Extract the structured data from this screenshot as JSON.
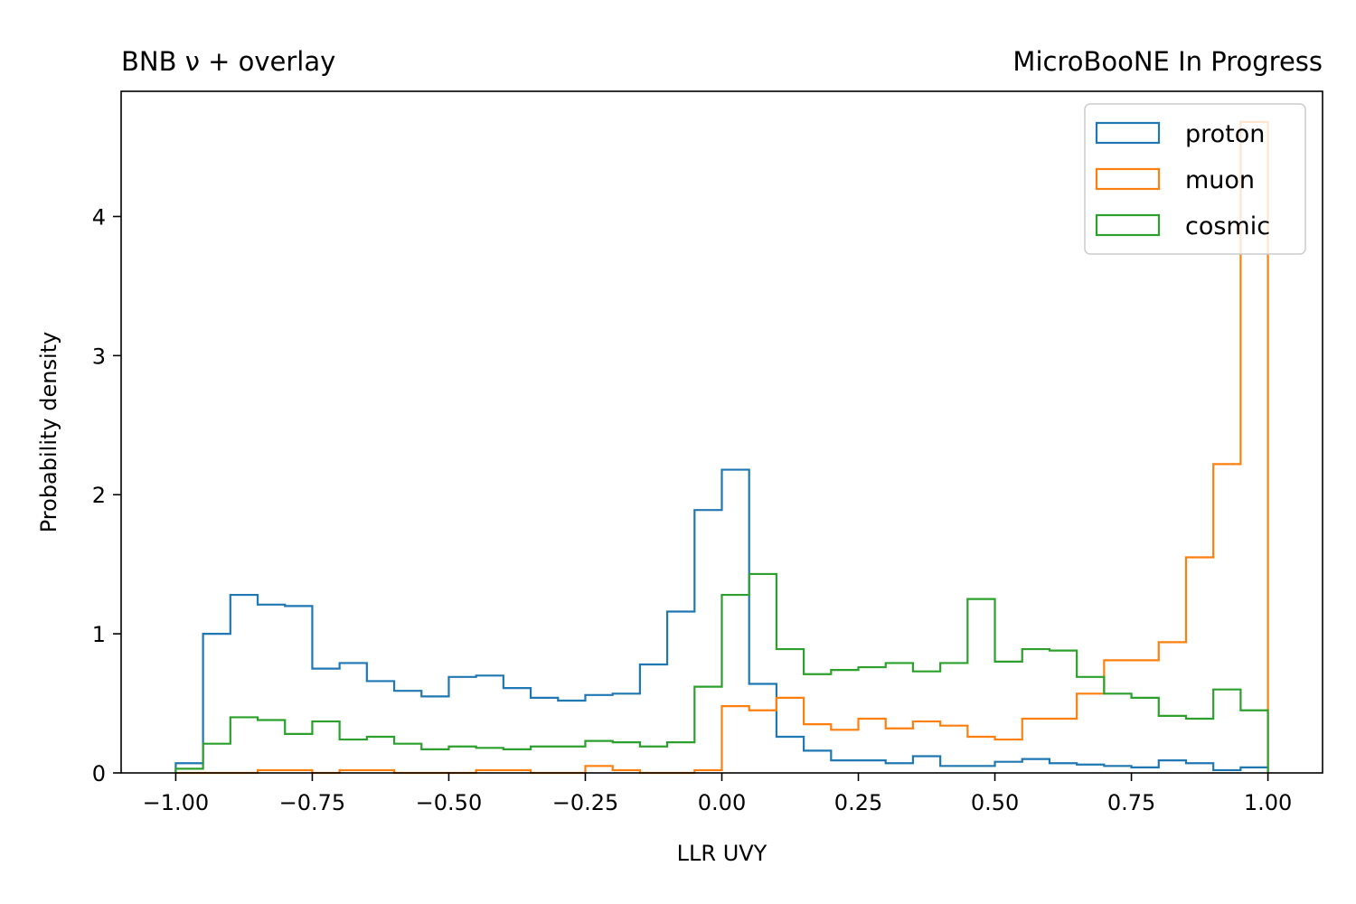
{
  "chart_data": {
    "type": "histogram",
    "title_left": "BNB ν + overlay",
    "title_right": "MicroBooNE In Progress",
    "xlabel": "LLR UVY",
    "ylabel": "Probability density",
    "xlim": [
      -1.1,
      1.1
    ],
    "ylim": [
      0,
      4.9
    ],
    "xticks": [
      -1.0,
      -0.75,
      -0.5,
      -0.25,
      0.0,
      0.25,
      0.5,
      0.75,
      1.0
    ],
    "xtick_labels": [
      "−1.00",
      "−0.75",
      "−0.50",
      "−0.25",
      "0.00",
      "0.25",
      "0.50",
      "0.75",
      "1.00"
    ],
    "yticks": [
      0,
      1,
      2,
      3,
      4
    ],
    "ytick_labels": [
      "0",
      "1",
      "2",
      "3",
      "4"
    ],
    "grid": false,
    "legend_position": "top-right",
    "bin_edges_start": -1.0,
    "bin_width": 0.05,
    "series": [
      {
        "name": "proton",
        "color": "#1f77b4",
        "values": [
          0.07,
          1.0,
          1.28,
          1.21,
          1.2,
          0.75,
          0.79,
          0.66,
          0.59,
          0.55,
          0.69,
          0.7,
          0.61,
          0.54,
          0.52,
          0.56,
          0.57,
          0.78,
          1.16,
          1.89,
          2.18,
          0.64,
          0.26,
          0.16,
          0.09,
          0.09,
          0.07,
          0.12,
          0.05,
          0.05,
          0.08,
          0.1,
          0.07,
          0.06,
          0.05,
          0.04,
          0.09,
          0.07,
          0.02,
          0.04
        ]
      },
      {
        "name": "muon",
        "color": "#ff7f0e",
        "values": [
          0,
          0,
          0,
          0.02,
          0.02,
          0,
          0.02,
          0.02,
          0,
          0,
          0,
          0.02,
          0.02,
          0,
          0,
          0.05,
          0.02,
          0,
          0,
          0.02,
          0.48,
          0.45,
          0.54,
          0.35,
          0.31,
          0.39,
          0.32,
          0.37,
          0.34,
          0.26,
          0.24,
          0.39,
          0.39,
          0.57,
          0.81,
          0.81,
          0.94,
          1.55,
          2.22,
          4.68
        ]
      },
      {
        "name": "cosmic",
        "color": "#2ca02c",
        "values": [
          0.03,
          0.21,
          0.4,
          0.38,
          0.28,
          0.37,
          0.24,
          0.26,
          0.21,
          0.17,
          0.19,
          0.18,
          0.17,
          0.19,
          0.19,
          0.23,
          0.22,
          0.19,
          0.22,
          0.62,
          1.28,
          1.43,
          0.89,
          0.71,
          0.74,
          0.76,
          0.79,
          0.73,
          0.79,
          1.25,
          0.8,
          0.89,
          0.88,
          0.69,
          0.57,
          0.54,
          0.41,
          0.39,
          0.6,
          0.45
        ]
      }
    ]
  }
}
